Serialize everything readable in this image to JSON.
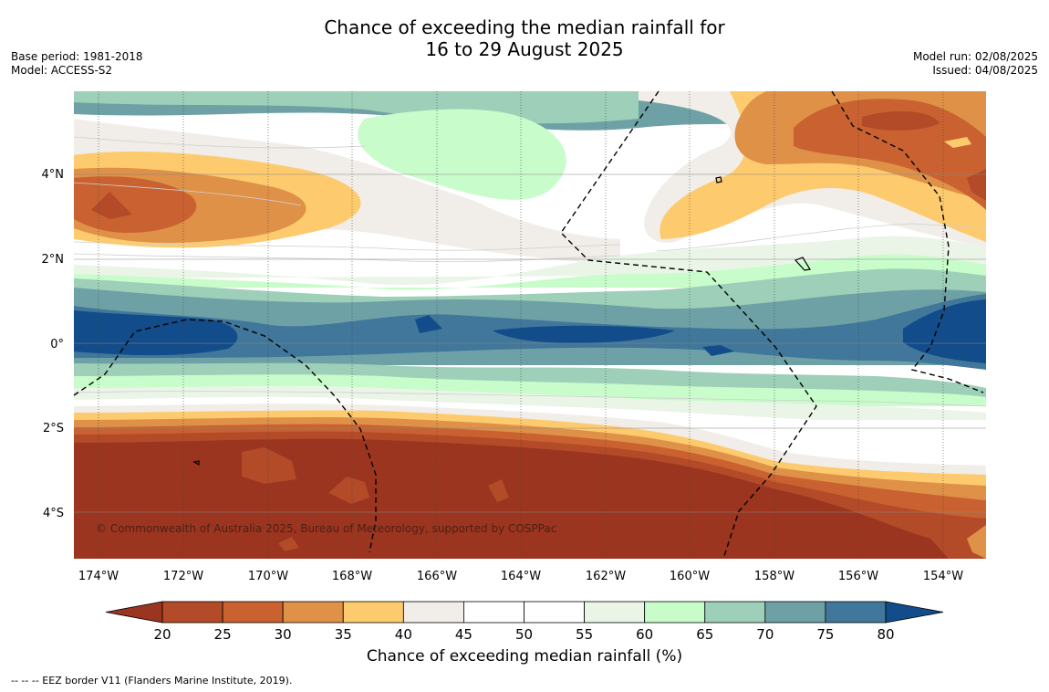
{
  "title_line1": "Chance of exceeding the median rainfall for",
  "title_line2": "16 to 29 August 2025",
  "base_period": "Base period: 1981-2018",
  "model": "Model: ACCESS-S2",
  "model_run": "Model run: 02/08/2025",
  "issued": "Issued: 04/08/2025",
  "copyright": "© Commonwealth of Australia 2025, Bureau of Meteorology, supported by COSPPac",
  "lat_labels": [
    "4°N",
    "2°N",
    "0°",
    "2°S",
    "4°S"
  ],
  "lon_labels": [
    "174°W",
    "172°W",
    "170°W",
    "168°W",
    "166°W",
    "164°W",
    "162°W",
    "160°W",
    "158°W",
    "156°W",
    "154°W"
  ],
  "colorbar": {
    "label": "Chance of exceeding median rainfall (%)",
    "ticks": [
      "20",
      "25",
      "30",
      "35",
      "40",
      "45",
      "50",
      "55",
      "60",
      "65",
      "70",
      "75",
      "80"
    ],
    "colors": [
      "#9b3520",
      "#b34a28",
      "#c96230",
      "#df9148",
      "#fdcb6e",
      "#f1ede8",
      "#ffffff",
      "#ffffff",
      "#eaf5e8",
      "#c8fcca",
      "#9ecfb8",
      "#6ea1a6",
      "#40779a",
      "#124c8a"
    ]
  },
  "footnote": "--  --  -- EEZ border V11 (Flanders Marine Institute, 2019)."
}
